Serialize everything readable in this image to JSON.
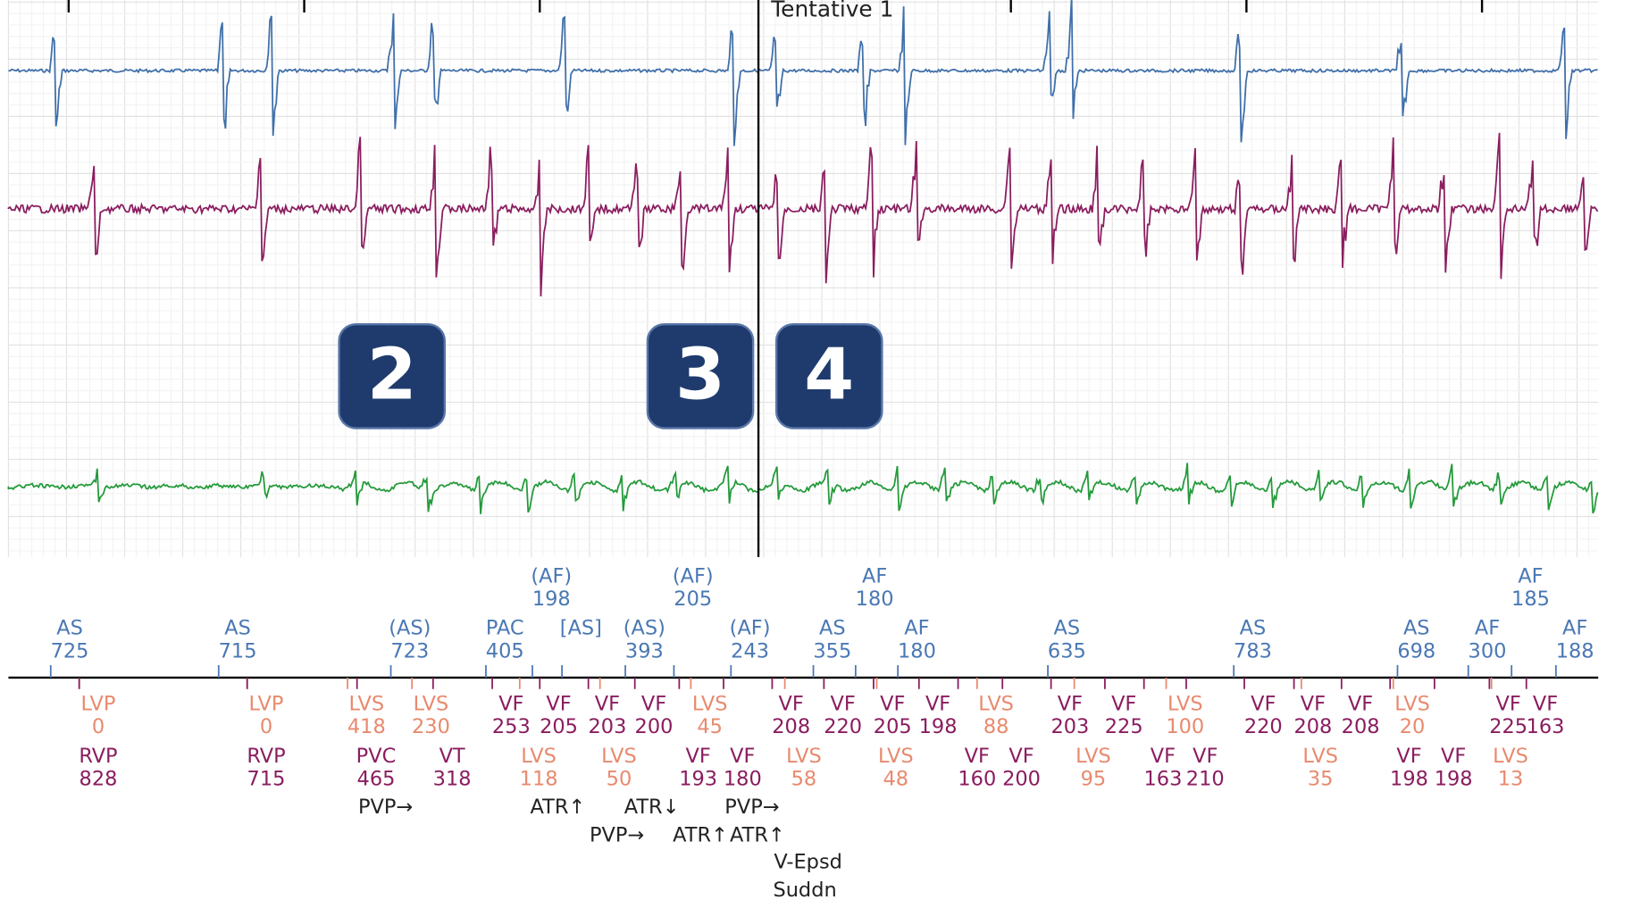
{
  "header": {
    "title": "Tentative 1"
  },
  "badges": [
    "2",
    "3",
    "4"
  ],
  "atrial_upper": [
    {
      "label": "(AF)",
      "value": 198
    },
    {
      "label": "(AF)",
      "value": 205
    },
    {
      "label": "AF",
      "value": 180
    },
    {
      "label": "AF",
      "value": 185
    }
  ],
  "atrial_lower": [
    {
      "label": "AS",
      "value": 725
    },
    {
      "label": "AS",
      "value": 715
    },
    {
      "label": "(AS)",
      "value": 723
    },
    {
      "label": "PAC",
      "value": 405
    },
    {
      "label": "[AS]"
    },
    {
      "label": "(AS)",
      "value": 393
    },
    {
      "label": "(AF)",
      "value": 243
    },
    {
      "label": "AS",
      "value": 355
    },
    {
      "label": "AF",
      "value": 180
    },
    {
      "label": "AS",
      "value": 635
    },
    {
      "label": "AS",
      "value": 783
    },
    {
      "label": "AS",
      "value": 698
    },
    {
      "label": "AF",
      "value": 300
    },
    {
      "label": "AF",
      "value": 188
    }
  ],
  "ventricular_upper": [
    {
      "label": "LVP",
      "value": 0
    },
    {
      "label": "LVP",
      "value": 0
    },
    {
      "label": "LVS",
      "value": 418
    },
    {
      "label": "LVS",
      "value": 230
    },
    {
      "label": "VF",
      "value": 253
    },
    {
      "label": "VF",
      "value": 205
    },
    {
      "label": "VF",
      "value": 203
    },
    {
      "label": "VF",
      "value": 200
    },
    {
      "label": "LVS",
      "value": 45
    },
    {
      "label": "VF",
      "value": 208
    },
    {
      "label": "VF",
      "value": 220
    },
    {
      "label": "VF",
      "value": 205
    },
    {
      "label": "VF",
      "value": 198
    },
    {
      "label": "LVS",
      "value": 88
    },
    {
      "label": "VF",
      "value": 203
    },
    {
      "label": "VF",
      "value": 225
    },
    {
      "label": "LVS",
      "value": 100
    },
    {
      "label": "VF",
      "value": 220
    },
    {
      "label": "VF",
      "value": 208
    },
    {
      "label": "VF",
      "value": 208
    },
    {
      "label": "LVS",
      "value": 20
    },
    {
      "label": "VF",
      "value": 225
    },
    {
      "label": "VF",
      "value": 163
    }
  ],
  "ventricular_lower": [
    {
      "label": "RVP",
      "value": 828
    },
    {
      "label": "RVP",
      "value": 715
    },
    {
      "label": "PVC",
      "value": 465
    },
    {
      "label": "VT",
      "value": 318
    },
    {
      "label": "LVS",
      "value": 118
    },
    {
      "label": "LVS",
      "value": 50
    },
    {
      "label": "VF",
      "value": 193
    },
    {
      "label": "VF",
      "value": 180
    },
    {
      "label": "LVS",
      "value": 58
    },
    {
      "label": "LVS",
      "value": 48
    },
    {
      "label": "VF",
      "value": 160
    },
    {
      "label": "VF",
      "value": 200
    },
    {
      "label": "LVS",
      "value": 95
    },
    {
      "label": "VF",
      "value": 163
    },
    {
      "label": "VF",
      "value": 210
    },
    {
      "label": "LVS",
      "value": 35
    },
    {
      "label": "VF",
      "value": 198
    },
    {
      "label": "VF",
      "value": 198
    },
    {
      "label": "LVS",
      "value": 13
    }
  ],
  "annotations": [
    "PVP→",
    "ATR↑",
    "ATR↓",
    "PVP→",
    "PVP→",
    "ATR↑",
    "ATR↑",
    "V-Epsd",
    "Suddn"
  ]
}
